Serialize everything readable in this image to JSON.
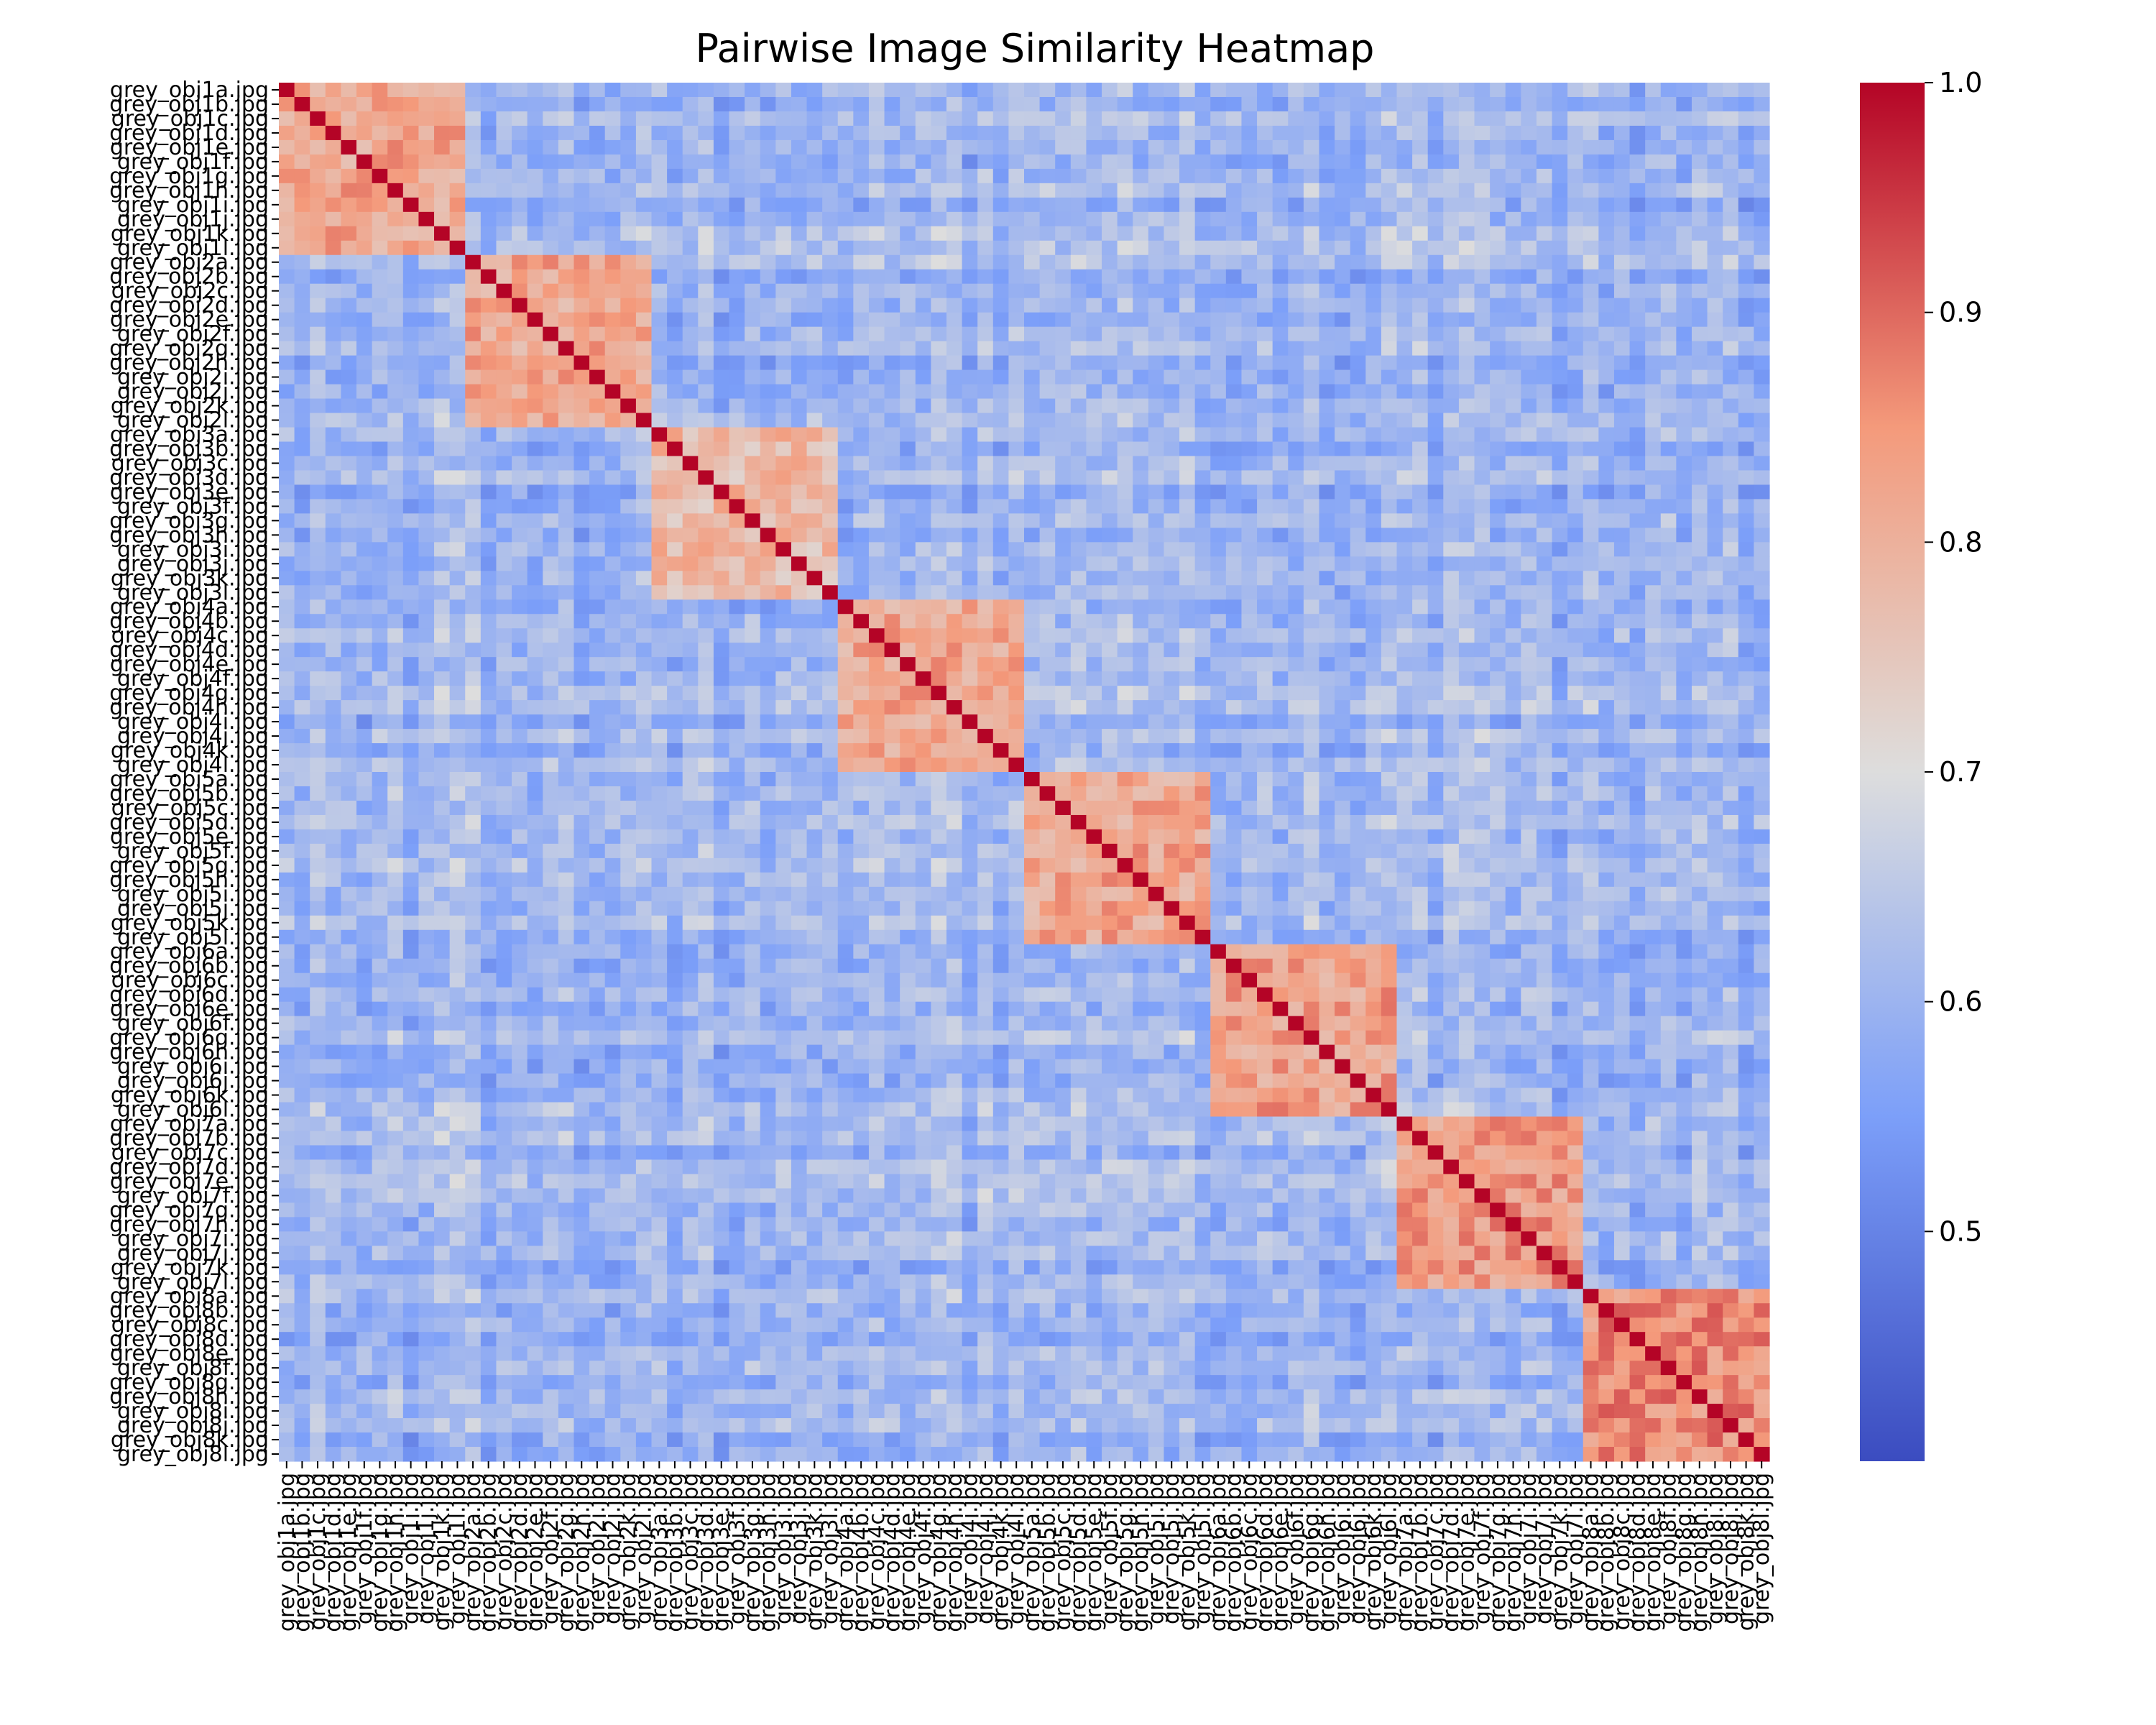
{
  "chart_data": {
    "type": "heatmap",
    "title": "Pairwise Image Similarity Heatmap",
    "xlabel": "",
    "ylabel": "",
    "colormap": "coolwarm",
    "value_range": [
      0.4,
      1.0
    ],
    "colorbar": {
      "ticks": [
        "1.0",
        "0.9",
        "0.8",
        "0.7",
        "0.6",
        "0.5"
      ],
      "tick_values": [
        1.0,
        0.9,
        0.8,
        0.7,
        0.6,
        0.5
      ]
    },
    "labels": [
      "grey_obj1a.jpg",
      "grey_obj1b.jpg",
      "grey_obj1c.jpg",
      "grey_obj1d.jpg",
      "grey_obj1e.jpg",
      "grey_obj1f.jpg",
      "grey_obj1g.jpg",
      "grey_obj1h.jpg",
      "grey_obj1i.jpg",
      "grey_obj1j.jpg",
      "grey_obj1k.jpg",
      "grey_obj1l.jpg",
      "grey_obj2a.jpg",
      "grey_obj2b.jpg",
      "grey_obj2c.jpg",
      "grey_obj2d.jpg",
      "grey_obj2e.jpg",
      "grey_obj2f.jpg",
      "grey_obj2g.jpg",
      "grey_obj2h.jpg",
      "grey_obj2i.jpg",
      "grey_obj2j.jpg",
      "grey_obj2k.jpg",
      "grey_obj2l.jpg",
      "grey_obj3a.jpg",
      "grey_obj3b.jpg",
      "grey_obj3c.jpg",
      "grey_obj3d.jpg",
      "grey_obj3e.jpg",
      "grey_obj3f.jpg",
      "grey_obj3g.jpg",
      "grey_obj3h.jpg",
      "grey_obj3i.jpg",
      "grey_obj3j.jpg",
      "grey_obj3k.jpg",
      "grey_obj3l.jpg",
      "grey_obj4a.jpg",
      "grey_obj4b.jpg",
      "grey_obj4c.jpg",
      "grey_obj4d.jpg",
      "grey_obj4e.jpg",
      "grey_obj4f.jpg",
      "grey_obj4g.jpg",
      "grey_obj4h.jpg",
      "grey_obj4i.jpg",
      "grey_obj4j.jpg",
      "grey_obj4k.jpg",
      "grey_obj4l.jpg",
      "grey_obj5a.jpg",
      "grey_obj5b.jpg",
      "grey_obj5c.jpg",
      "grey_obj5d.jpg",
      "grey_obj5e.jpg",
      "grey_obj5f.jpg",
      "grey_obj5g.jpg",
      "grey_obj5h.jpg",
      "grey_obj5i.jpg",
      "grey_obj5j.jpg",
      "grey_obj5k.jpg",
      "grey_obj5l.jpg",
      "grey_obj6a.jpg",
      "grey_obj6b.jpg",
      "grey_obj6c.jpg",
      "grey_obj6d.jpg",
      "grey_obj6e.jpg",
      "grey_obj6f.jpg",
      "grey_obj6g.jpg",
      "grey_obj6h.jpg",
      "grey_obj6i.jpg",
      "grey_obj6j.jpg",
      "grey_obj6k.jpg",
      "grey_obj6l.jpg",
      "grey_obj7a.jpg",
      "grey_obj7b.jpg",
      "grey_obj7c.jpg",
      "grey_obj7d.jpg",
      "grey_obj7e.jpg",
      "grey_obj7f.jpg",
      "grey_obj7g.jpg",
      "grey_obj7h.jpg",
      "grey_obj7i.jpg",
      "grey_obj7j.jpg",
      "grey_obj7k.jpg",
      "grey_obj7l.jpg",
      "grey_obj8a.jpg",
      "grey_obj8b.jpg",
      "grey_obj8c.jpg",
      "grey_obj8d.jpg",
      "grey_obj8e.jpg",
      "grey_obj8f.jpg",
      "grey_obj8g.jpg",
      "grey_obj8h.jpg",
      "grey_obj8i.jpg",
      "grey_obj8j.jpg",
      "grey_obj8k.jpg",
      "grey_obj8l.jpg"
    ],
    "blocks": [
      {
        "group": "grey_obj1",
        "within_similarity_approx": 0.82
      },
      {
        "group": "grey_obj2",
        "within_similarity_approx": 0.82
      },
      {
        "group": "grey_obj3",
        "within_similarity_approx": 0.78
      },
      {
        "group": "grey_obj4",
        "within_similarity_approx": 0.82
      },
      {
        "group": "grey_obj5",
        "within_similarity_approx": 0.82
      },
      {
        "group": "grey_obj6",
        "within_similarity_approx": 0.83
      },
      {
        "group": "grey_obj7",
        "within_similarity_approx": 0.84
      },
      {
        "group": "grey_obj8",
        "within_similarity_approx": 0.86
      }
    ],
    "diagonal_value": 1.0,
    "off_block_similarity_approx": 0.6
  }
}
